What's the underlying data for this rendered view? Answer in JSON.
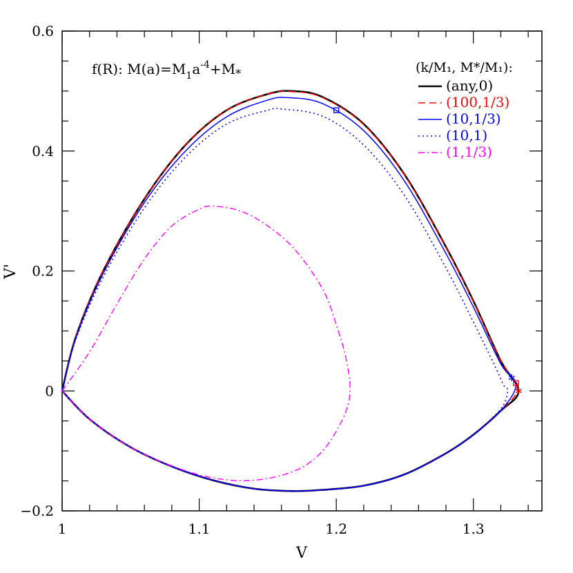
{
  "chart_data": {
    "type": "line",
    "title_parts": {
      "main": "f(R):  M(a)=M",
      "sub1": "1",
      "mid": "a",
      "sup": "-4",
      "plus": "+M",
      "subs": "*"
    },
    "xlabel": "V",
    "ylabel": "V'",
    "xlim": [
      1.0,
      1.35
    ],
    "ylim": [
      -0.2,
      0.6
    ],
    "xticks": [
      {
        "value": 1.0,
        "label": "1"
      },
      {
        "value": 1.1,
        "label": "1.1"
      },
      {
        "value": 1.2,
        "label": "1.2"
      },
      {
        "value": 1.3,
        "label": "1.3"
      }
    ],
    "yticks": [
      {
        "value": -0.2,
        "label": "−0.2"
      },
      {
        "value": 0.0,
        "label": "0"
      },
      {
        "value": 0.2,
        "label": "0.2"
      },
      {
        "value": 0.4,
        "label": "0.4"
      },
      {
        "value": 0.6,
        "label": "0.6"
      }
    ],
    "legend_title": "(k/M₁, M*/M₁):",
    "legend_placement": "top-right",
    "series": [
      {
        "name": "(any,0)",
        "color": "#000000",
        "style": "solid-thick",
        "x": [
          1.0,
          1.01,
          1.03,
          1.06,
          1.09,
          1.12,
          1.15,
          1.168,
          1.19,
          1.22,
          1.25,
          1.28,
          1.3,
          1.32,
          1.333,
          1.32,
          1.3,
          1.28,
          1.25,
          1.22,
          1.19,
          1.168,
          1.14,
          1.11,
          1.08,
          1.05,
          1.02,
          1.0
        ],
        "y": [
          0.0,
          0.09,
          0.2,
          0.32,
          0.41,
          0.468,
          0.495,
          0.5,
          0.49,
          0.445,
          0.36,
          0.24,
          0.15,
          0.05,
          0.0,
          -0.033,
          -0.073,
          -0.104,
          -0.139,
          -0.158,
          -0.165,
          -0.167,
          -0.163,
          -0.149,
          -0.126,
          -0.094,
          -0.047,
          0.0
        ]
      },
      {
        "name": "(100,1/3)",
        "color": "#ff0000",
        "style": "dashed",
        "x": [
          1.0,
          1.01,
          1.03,
          1.06,
          1.09,
          1.12,
          1.15,
          1.168,
          1.19,
          1.22,
          1.25,
          1.28,
          1.3,
          1.32,
          1.332,
          1.32,
          1.3,
          1.28,
          1.25,
          1.22,
          1.19,
          1.168,
          1.14,
          1.11,
          1.08,
          1.05,
          1.02,
          1.0
        ],
        "y": [
          0.0,
          0.09,
          0.2,
          0.32,
          0.41,
          0.468,
          0.495,
          0.499,
          0.489,
          0.444,
          0.359,
          0.239,
          0.149,
          0.05,
          0.004,
          -0.033,
          -0.073,
          -0.104,
          -0.139,
          -0.158,
          -0.165,
          -0.167,
          -0.163,
          -0.149,
          -0.126,
          -0.094,
          -0.047,
          0.0
        ]
      },
      {
        "name": "(10,1/3)",
        "color": "#0000ff",
        "style": "solid",
        "x": [
          1.0,
          1.01,
          1.03,
          1.06,
          1.09,
          1.12,
          1.15,
          1.165,
          1.19,
          1.22,
          1.25,
          1.28,
          1.3,
          1.32,
          1.331,
          1.32,
          1.3,
          1.28,
          1.25,
          1.22,
          1.19,
          1.168,
          1.14,
          1.11,
          1.08,
          1.05,
          1.02,
          1.0
        ],
        "y": [
          0.0,
          0.088,
          0.196,
          0.314,
          0.4,
          0.457,
          0.485,
          0.489,
          0.479,
          0.434,
          0.349,
          0.229,
          0.14,
          0.045,
          0.01,
          -0.033,
          -0.073,
          -0.104,
          -0.139,
          -0.158,
          -0.165,
          -0.167,
          -0.163,
          -0.149,
          -0.126,
          -0.094,
          -0.047,
          0.0
        ]
      },
      {
        "name": "(10,1)",
        "color": "#0000ff",
        "style": "dotted",
        "x": [
          1.0,
          1.01,
          1.03,
          1.06,
          1.09,
          1.12,
          1.15,
          1.16,
          1.19,
          1.22,
          1.25,
          1.28,
          1.3,
          1.316,
          1.322,
          1.325,
          1.32,
          1.3,
          1.28,
          1.25,
          1.22,
          1.19,
          1.168,
          1.14,
          1.11,
          1.08,
          1.05,
          1.02,
          1.0
        ],
        "y": [
          0.0,
          0.086,
          0.19,
          0.305,
          0.39,
          0.445,
          0.468,
          0.47,
          0.458,
          0.41,
          0.325,
          0.205,
          0.115,
          0.04,
          0.01,
          0.0,
          -0.03,
          -0.073,
          -0.104,
          -0.139,
          -0.158,
          -0.165,
          -0.167,
          -0.163,
          -0.149,
          -0.126,
          -0.094,
          -0.047,
          0.0
        ]
      },
      {
        "name": "(1,1/3)",
        "color": "#ff00ff",
        "style": "dashdot",
        "x": [
          1.0,
          1.02,
          1.04,
          1.06,
          1.08,
          1.1,
          1.11,
          1.13,
          1.15,
          1.17,
          1.19,
          1.2,
          1.207,
          1.21,
          1.205,
          1.19,
          1.17,
          1.14,
          1.11,
          1.08,
          1.05,
          1.02,
          1.0
        ],
        "y": [
          0.0,
          0.065,
          0.145,
          0.22,
          0.275,
          0.303,
          0.308,
          0.3,
          0.275,
          0.235,
          0.17,
          0.11,
          0.055,
          0.0,
          -0.045,
          -0.1,
          -0.133,
          -0.149,
          -0.145,
          -0.125,
          -0.094,
          -0.047,
          0.0
        ]
      }
    ],
    "markers": [
      {
        "shape": "square",
        "color": "#0000ff",
        "x": 1.2,
        "y": 0.468
      },
      {
        "shape": "square",
        "color": "#ff0000",
        "x": 1.331,
        "y": 0.013
      },
      {
        "shape": "star",
        "color": "#0000ff",
        "x": 1.328,
        "y": 0.022
      },
      {
        "shape": "star",
        "color": "#ff0000",
        "x": 1.333,
        "y": 0.0
      }
    ]
  }
}
